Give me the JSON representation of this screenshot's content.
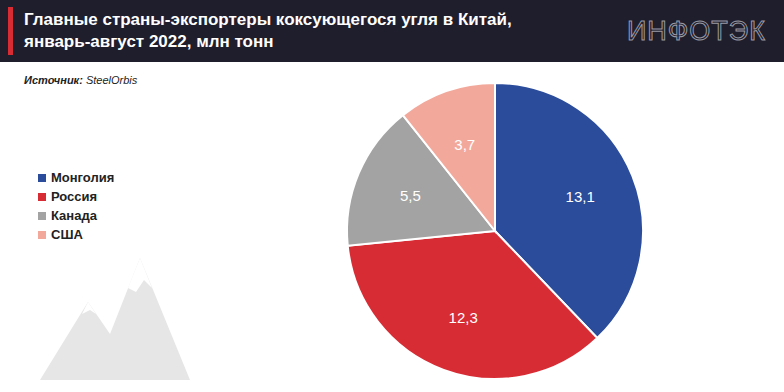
{
  "chart_data": {
    "type": "pie",
    "title": "Главные страны-экспортеры коксующегося угля в Китай,\nянварь-август 2022, млн тонн",
    "source": "Источник: SteelOrbis",
    "logo": "ИНФОТЭК",
    "categories": [
      "Монголия",
      "Россия",
      "Канада",
      "США"
    ],
    "values": [
      13.1,
      12.3,
      5.5,
      3.7
    ],
    "value_labels": [
      "13,1",
      "12,3",
      "5,5",
      "3,7"
    ],
    "colors": [
      "#2b4c9b",
      "#d82c35",
      "#a3a3a3",
      "#f2a99c"
    ],
    "data_labels": true,
    "legend": "left"
  }
}
